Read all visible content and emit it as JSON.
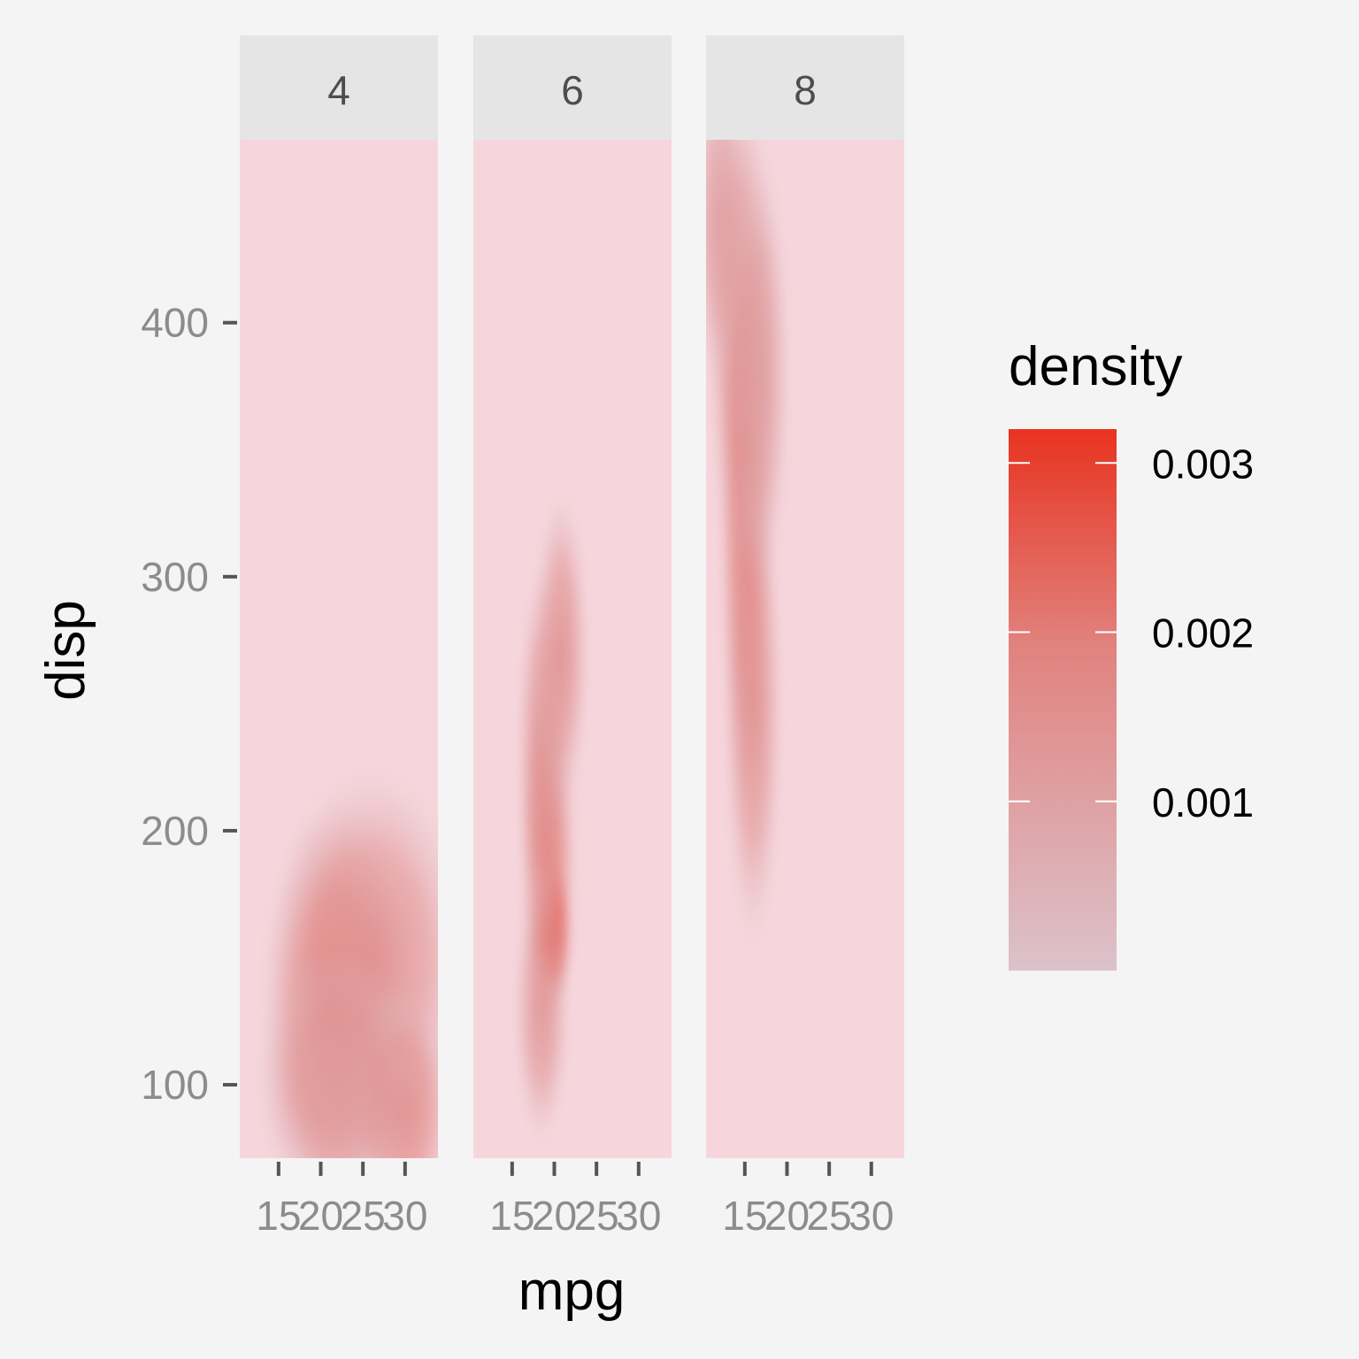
{
  "chart_data": {
    "type": "heatmap",
    "title": "",
    "xlabel": "mpg",
    "ylabel": "disp",
    "facet_labels": [
      "4",
      "6",
      "8"
    ],
    "x_ticks": [
      15,
      20,
      25,
      30
    ],
    "x_tick_labels": [
      "15",
      "20",
      "25",
      "30"
    ],
    "xlim": [
      10.4,
      33.9
    ],
    "y_ticks": [
      100,
      200,
      300,
      400
    ],
    "y_tick_labels": [
      "100",
      "200",
      "300",
      "400"
    ],
    "ylim": [
      71.1,
      472
    ],
    "legend": {
      "title": "density",
      "position": "right",
      "range": [
        0,
        0.0032
      ],
      "breaks": [
        0.001,
        0.002,
        0.003
      ],
      "break_labels": [
        "0.001",
        "0.002",
        "0.003"
      ],
      "low_color": "#dcc2cb",
      "high_color": "#e8331f"
    },
    "background_color": "#f6d6dc",
    "panels": [
      {
        "facet": "4",
        "blobs": [
          {
            "mpg": 21.5,
            "disp": 130,
            "density": 0.0015,
            "sx": 4.0,
            "sy": 38
          },
          {
            "mpg": 26,
            "disp": 150,
            "density": 0.0011,
            "sx": 5.5,
            "sy": 35
          },
          {
            "mpg": 29.5,
            "disp": 90,
            "density": 0.0013,
            "sx": 3.0,
            "sy": 22
          },
          {
            "mpg": 22,
            "disp": 100,
            "density": 0.0009,
            "sx": 4.5,
            "sy": 24
          }
        ]
      },
      {
        "facet": "6",
        "blobs": [
          {
            "mpg": 19.7,
            "disp": 160,
            "density": 0.0032,
            "sx": 1.1,
            "sy": 14
          },
          {
            "mpg": 19.3,
            "disp": 190,
            "density": 0.0016,
            "sx": 1.5,
            "sy": 30
          },
          {
            "mpg": 18.5,
            "disp": 230,
            "density": 0.0011,
            "sx": 1.3,
            "sy": 35
          },
          {
            "mpg": 20.8,
            "disp": 270,
            "density": 0.0011,
            "sx": 1.5,
            "sy": 30
          },
          {
            "mpg": 18.5,
            "disp": 130,
            "density": 0.001,
            "sx": 1.5,
            "sy": 25
          }
        ]
      },
      {
        "facet": "8",
        "blobs": [
          {
            "mpg": 15,
            "disp": 330,
            "density": 0.0017,
            "sx": 1.4,
            "sy": 55
          },
          {
            "mpg": 14.5,
            "disp": 400,
            "density": 0.0011,
            "sx": 1.8,
            "sy": 45
          },
          {
            "mpg": 16,
            "disp": 250,
            "density": 0.0011,
            "sx": 1.6,
            "sy": 45
          },
          {
            "mpg": 12,
            "disp": 440,
            "density": 0.0008,
            "sx": 1.5,
            "sy": 30
          },
          {
            "mpg": 17,
            "disp": 380,
            "density": 0.0008,
            "sx": 1.5,
            "sy": 40
          }
        ]
      }
    ]
  }
}
